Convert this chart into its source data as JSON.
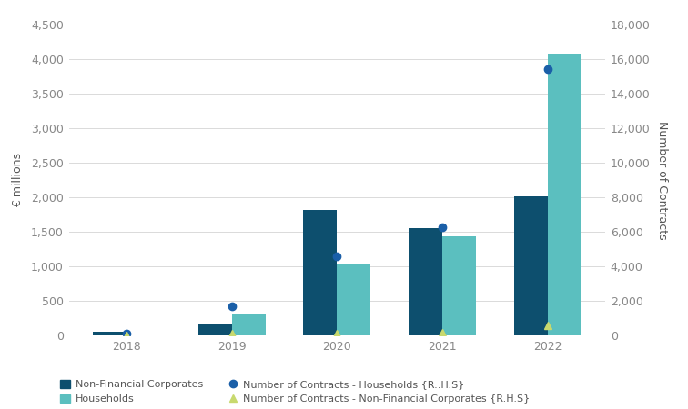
{
  "years": [
    2018,
    2019,
    2020,
    2021,
    2022
  ],
  "nfc_bars": [
    50,
    175,
    1810,
    1550,
    2010
  ],
  "hh_bars": [
    0,
    310,
    1030,
    1430,
    4080
  ],
  "hh_contracts": [
    80,
    1700,
    4600,
    6250,
    15400
  ],
  "nfc_contracts": [
    0,
    80,
    100,
    150,
    580
  ],
  "bar_color_nfc": "#0d4f6e",
  "bar_color_hh": "#5bbfbf",
  "dot_color_hh": "#1a5fa8",
  "tri_color_nfc": "#c8d96e",
  "ylabel_left": "€ millions",
  "ylabel_right": "Number of Contracts",
  "ylim_left": [
    0,
    4500
  ],
  "ylim_right": [
    0,
    18000
  ],
  "yticks_left": [
    0,
    500,
    1000,
    1500,
    2000,
    2500,
    3000,
    3500,
    4000,
    4500
  ],
  "yticks_right": [
    0,
    2000,
    4000,
    6000,
    8000,
    10000,
    12000,
    14000,
    16000,
    18000
  ],
  "legend_labels": [
    "Non-Financial Corporates",
    "Households",
    "Number of Contracts - Households {R..H.S}",
    "Number of Contracts - Non-Financial Corporates {R.H.S}"
  ],
  "background_color": "#ffffff",
  "grid_color": "#d4d4d4",
  "bar_width": 0.32,
  "tick_color": "#888888",
  "label_color": "#555555"
}
